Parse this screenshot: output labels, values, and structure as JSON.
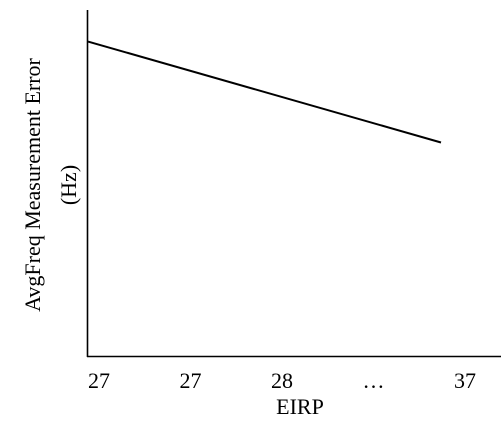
{
  "chart_data": {
    "type": "line",
    "title": "",
    "xlabel": "EIRP",
    "ylabel_lines": [
      "AvgFreq Measurement Error",
      "(Hz)"
    ],
    "categories": [
      "27",
      "27",
      "28",
      "…",
      "37"
    ],
    "series": [
      {
        "values": [
          [
            0,
            1.0
          ],
          [
            4,
            0.68
          ]
        ]
      }
    ],
    "y_range": [
      0,
      1.1
    ],
    "y_ticks_shown": false,
    "grid": false,
    "legend": "none",
    "line_color": "#000000",
    "axis_color": "#000000"
  }
}
